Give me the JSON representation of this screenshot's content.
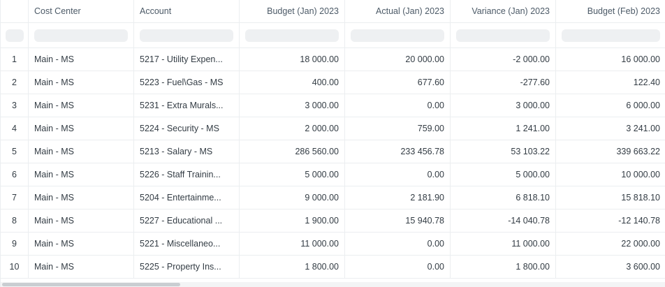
{
  "headers": {
    "cost_center": "Cost Center",
    "account": "Account",
    "budget_jan": "Budget (Jan) 2023",
    "actual_jan": "Actual (Jan) 2023",
    "variance_jan": "Variance (Jan) 2023",
    "budget_feb": "Budget (Feb) 2023"
  },
  "rows": [
    {
      "idx": "1",
      "cost_center": "Main - MS",
      "account": "5217 - Utility Expen...",
      "budget_jan": "18 000.00",
      "actual_jan": "20 000.00",
      "variance_jan": "-2 000.00",
      "budget_feb": "16 000.00"
    },
    {
      "idx": "2",
      "cost_center": "Main - MS",
      "account": "5223 - Fuel\\Gas - MS",
      "budget_jan": "400.00",
      "actual_jan": "677.60",
      "variance_jan": "-277.60",
      "budget_feb": "122.40"
    },
    {
      "idx": "3",
      "cost_center": "Main - MS",
      "account": "5231 - Extra Murals...",
      "budget_jan": "3 000.00",
      "actual_jan": "0.00",
      "variance_jan": "3 000.00",
      "budget_feb": "6 000.00"
    },
    {
      "idx": "4",
      "cost_center": "Main - MS",
      "account": "5224 - Security - MS",
      "budget_jan": "2 000.00",
      "actual_jan": "759.00",
      "variance_jan": "1 241.00",
      "budget_feb": "3 241.00"
    },
    {
      "idx": "5",
      "cost_center": "Main - MS",
      "account": "5213 - Salary - MS",
      "budget_jan": "286 560.00",
      "actual_jan": "233 456.78",
      "variance_jan": "53 103.22",
      "budget_feb": "339 663.22"
    },
    {
      "idx": "6",
      "cost_center": "Main - MS",
      "account": "5226 - Staff Trainin...",
      "budget_jan": "5 000.00",
      "actual_jan": "0.00",
      "variance_jan": "5 000.00",
      "budget_feb": "10 000.00"
    },
    {
      "idx": "7",
      "cost_center": "Main - MS",
      "account": "5204 - Entertainme...",
      "budget_jan": "9 000.00",
      "actual_jan": "2 181.90",
      "variance_jan": "6 818.10",
      "budget_feb": "15 818.10"
    },
    {
      "idx": "8",
      "cost_center": "Main - MS",
      "account": "5227 - Educational ...",
      "budget_jan": "1 900.00",
      "actual_jan": "15 940.78",
      "variance_jan": "-14 040.78",
      "budget_feb": "-12 140.78"
    },
    {
      "idx": "9",
      "cost_center": "Main - MS",
      "account": "5221 - Miscellaneo...",
      "budget_jan": "11 000.00",
      "actual_jan": "0.00",
      "variance_jan": "11 000.00",
      "budget_feb": "22 000.00"
    },
    {
      "idx": "10",
      "cost_center": "Main - MS",
      "account": "5225 - Property Ins...",
      "budget_jan": "1 800.00",
      "actual_jan": "0.00",
      "variance_jan": "1 800.00",
      "budget_feb": "3 600.00"
    }
  ],
  "colors": {
    "negative": "#e03636",
    "positive": "#2b8a1f"
  }
}
